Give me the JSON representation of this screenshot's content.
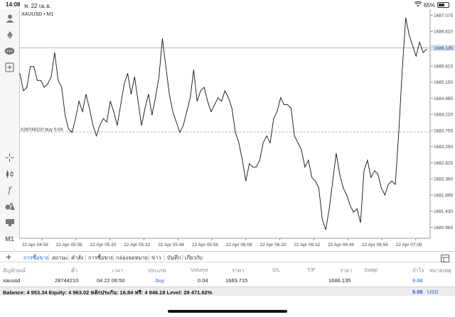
{
  "status_bar": {
    "time": "14:08",
    "date": "พ. 22 เม.ย.",
    "battery": "65%",
    "battery_level": 0.65
  },
  "chart": {
    "symbol_label": "XAUUSD • M1",
    "order_line_label": "#28744210 buy 0.04",
    "current_price_tag": "1686.135"
  },
  "chart_data": {
    "type": "line",
    "ylim": [
      1680.65,
      1687.25
    ],
    "y_ticks": [
      "1687.075",
      "1686.610",
      "1686.135",
      "1685.615",
      "1685.150",
      "1684.685",
      "1684.220",
      "1683.755",
      "1683.290",
      "1682.825",
      "1682.360",
      "1681.895",
      "1681.430",
      "1680.965"
    ],
    "x_tick_labels": [
      "22 Apr 04:56",
      "22 Apr 05:08",
      "22 Apr 05:20",
      "22 Apr 05:32",
      "22 Apr 05:44",
      "22 Apr 05:56",
      "22 Apr 06:08",
      "22 Apr 06:20",
      "22 Apr 06:32",
      "22 Apr 06:44",
      "22 Apr 06:56",
      "22 Apr 07:08"
    ],
    "current_price": 1686.135,
    "order_price": 1683.715,
    "series": [
      {
        "values": [
          1685.4,
          1684.9,
          1685.0,
          1685.6,
          1685.6,
          1685.2,
          1685.2,
          1685.0,
          1685.1,
          1685.3,
          1686.0,
          1685.2,
          1685.0,
          1684.2,
          1683.8,
          1683.7,
          1684.1,
          1684.6,
          1684.3,
          1684.8,
          1684.4,
          1683.9,
          1683.6,
          1683.9,
          1684.1,
          1684.0,
          1684.6,
          1684.3,
          1683.9,
          1684.5,
          1685.1,
          1685.4,
          1684.8,
          1685.3,
          1684.6,
          1683.9,
          1684.4,
          1684.8,
          1684.2,
          1684.7,
          1685.3,
          1686.4,
          1685.6,
          1684.8,
          1684.3,
          1684.0,
          1683.7,
          1683.9,
          1684.3,
          1684.7,
          1685.5,
          1684.6,
          1684.9,
          1685.0,
          1684.6,
          1684.3,
          1684.5,
          1684.7,
          1684.6,
          1684.9,
          1684.7,
          1684.4,
          1683.7,
          1683.4,
          1682.9,
          1682.3,
          1682.8,
          1682.7,
          1682.7,
          1682.9,
          1683.4,
          1683.6,
          1683.4,
          1684.1,
          1684.3,
          1684.7,
          1684.5,
          1684.5,
          1684.4,
          1683.6,
          1683.4,
          1683.2,
          1682.7,
          1682.9,
          1682.4,
          1682.3,
          1682.1,
          1681.2,
          1680.9,
          1681.5,
          1682.3,
          1683.1,
          1682.5,
          1682.1,
          1681.9,
          1681.6,
          1681.4,
          1681.5,
          1681.1,
          1682.6,
          1682.9,
          1682.4,
          1682.6,
          1682.5,
          1682.1,
          1681.9,
          1682.2,
          1682.3,
          1682.2,
          1683.7,
          1685.5,
          1687.0,
          1686.5,
          1686.2,
          1685.9,
          1686.3,
          1686.0,
          1686.1
        ]
      }
    ]
  },
  "tabs": [
    {
      "label": "การซื้อขาย",
      "active": true
    },
    {
      "label": "สถานะ"
    },
    {
      "label": "คำสั่ง"
    },
    {
      "label": "การซื้อขาย"
    },
    {
      "label": "กล่องจดหมาย"
    },
    {
      "label": "ข่าว"
    },
    {
      "label": "บันทึก"
    },
    {
      "label": "เกี่ยวกับ"
    }
  ],
  "table": {
    "headers": [
      "สัญลักษณ์",
      "ตั๋ว",
      "เวลา",
      "ประเภท",
      "Volume",
      "ราคา",
      "S/L",
      "T/P",
      "ราคา",
      "Swap",
      "กำไร",
      "หมายเหตุ"
    ],
    "row": {
      "symbol": "xauusd",
      "ticket": "28744210",
      "time": "04.22 06:50",
      "type": "buy",
      "volume": "0.04",
      "open_price": "1683.715",
      "price": "1686.135",
      "profit": "9.68"
    }
  },
  "summary": {
    "text": "Balance: 4 953.34 Equity: 4 963.02 หลักประกัน: 16.84 ฟรี: 4 946.18 Level: 29 471.62%",
    "pl": "9.68",
    "currency": "USD"
  },
  "icons": {
    "toolbar": [
      "account-icon",
      "trade-arrows-icon",
      "chat-icon",
      "new-order-icon",
      "crosshair-icon",
      "candles-icon",
      "indicator-f-icon",
      "objects-icon",
      "templates-icon",
      "timeframe-icon"
    ]
  }
}
